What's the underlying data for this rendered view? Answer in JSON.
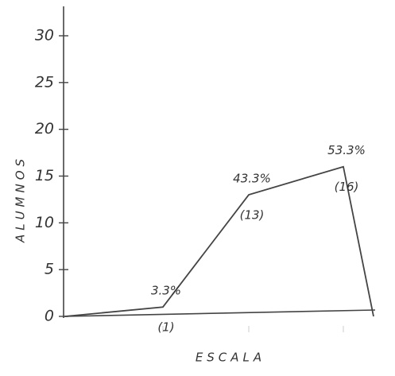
{
  "chart_data": {
    "type": "line",
    "y_label": "ALUMNOS",
    "x_label": "ESCALA",
    "categories": [
      null,
      null,
      null,
      null,
      null
    ],
    "values": [
      0,
      1,
      13,
      16,
      0
    ],
    "value_labels": [
      null,
      "(1)",
      "(13)",
      "(16)",
      null
    ],
    "annotations": [
      "3.3%",
      "43.3%",
      "53.3%"
    ],
    "color": "#444444",
    "ylim": [
      0,
      30
    ],
    "yticks": [
      0,
      5,
      10,
      15,
      20,
      25,
      30
    ]
  }
}
